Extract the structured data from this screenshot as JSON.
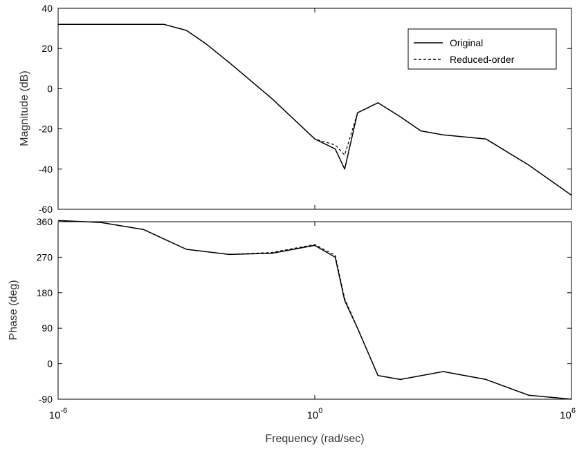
{
  "chart_data": [
    {
      "type": "line",
      "panel": "magnitude",
      "ylabel": "Magnitude (dB)",
      "xscale": "log",
      "xlim": [
        1e-06,
        1000000.0
      ],
      "ylim": [
        -60,
        40
      ],
      "yticks": [
        "-60",
        "-40",
        "-20",
        "0",
        "20",
        "40"
      ],
      "legend": {
        "placement": "top-right"
      },
      "series": [
        {
          "name": "Original",
          "style": "solid",
          "x": [
            1e-06,
            0.0003,
            0.001,
            0.003,
            0.01,
            0.1,
            1,
            3,
            5,
            10,
            30,
            100,
            300,
            1000,
            10000.0,
            100000.0,
            1000000.0
          ],
          "values": [
            32,
            32,
            29,
            22,
            13,
            -5,
            -25,
            -30,
            -40,
            -12,
            -7,
            -14,
            -21,
            -23,
            -25,
            -38,
            -53
          ]
        },
        {
          "name": "Reduced-order",
          "style": "dashed",
          "x": [
            1e-06,
            0.0003,
            0.001,
            0.003,
            0.01,
            0.1,
            1,
            3,
            5,
            10,
            30,
            100,
            300,
            1000,
            10000.0,
            100000.0,
            1000000.0
          ],
          "values": [
            32,
            32,
            29,
            22,
            13,
            -5,
            -25,
            -28,
            -33,
            -12,
            -7,
            -14,
            -21,
            -23,
            -25,
            -38,
            -53
          ]
        }
      ]
    },
    {
      "type": "line",
      "panel": "phase",
      "ylabel": "Phase (deg)",
      "xlabel": "Frequency (rad/sec)",
      "xscale": "log",
      "xlim": [
        1e-06,
        1000000.0
      ],
      "ylim": [
        -90,
        360
      ],
      "yticks": [
        "-90",
        "0",
        "90",
        "180",
        "270",
        "360"
      ],
      "xticks": [
        {
          "base": "10",
          "exp": "-6"
        },
        {
          "base": "10",
          "exp": "0"
        },
        {
          "base": "10",
          "exp": "6"
        }
      ],
      "series": [
        {
          "name": "Original",
          "style": "solid",
          "x": [
            1e-06,
            1e-05,
            0.0001,
            0.001,
            0.01,
            0.1,
            1,
            3,
            5,
            10,
            30,
            100,
            1000,
            10000.0,
            100000.0,
            1000000.0
          ],
          "values": [
            363,
            358,
            340,
            290,
            277,
            280,
            300,
            270,
            160,
            90,
            -30,
            -40,
            -20,
            -40,
            -80,
            -90
          ]
        },
        {
          "name": "Reduced-order",
          "style": "dashed",
          "x": [
            1e-06,
            1e-05,
            0.0001,
            0.001,
            0.01,
            0.1,
            1,
            3,
            5,
            10,
            30,
            100,
            1000,
            10000.0,
            100000.0,
            1000000.0
          ],
          "values": [
            363,
            358,
            340,
            290,
            277,
            282,
            302,
            275,
            165,
            90,
            -30,
            -40,
            -20,
            -40,
            -80,
            -90
          ]
        }
      ]
    }
  ]
}
